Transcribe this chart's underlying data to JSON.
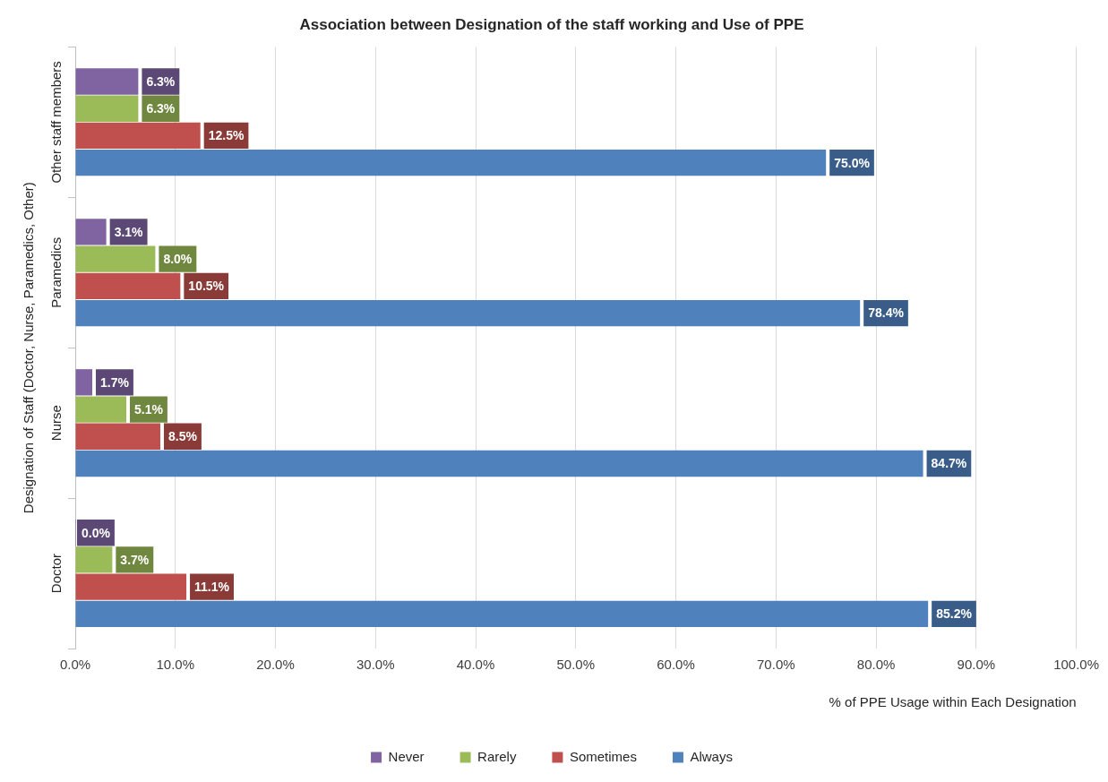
{
  "chart_data": {
    "type": "bar",
    "orientation": "horizontal",
    "title": "Association between Designation of the staff working and Use of PPE",
    "xlabel": "% of PPE Usage within Each Designation",
    "ylabel": "Designation of Staff (Doctor, Nurse, Paramedics, Other)",
    "categories": [
      "Other staff members",
      "Paramedics",
      "Nurse",
      "Doctor"
    ],
    "series": [
      {
        "name": "Never",
        "color": "#8064a2",
        "values": [
          6.3,
          3.1,
          1.7,
          0.0
        ],
        "value_labels": [
          "6.3%",
          "3.1%",
          "1.7%",
          "0.0%"
        ]
      },
      {
        "name": "Rarely",
        "color": "#9bbb59",
        "values": [
          6.3,
          8.0,
          5.1,
          3.7
        ],
        "value_labels": [
          "6.3%",
          "8.0%",
          "5.1%",
          "3.7%"
        ]
      },
      {
        "name": "Sometimes",
        "color": "#c0504d",
        "values": [
          12.5,
          10.5,
          8.5,
          11.1
        ],
        "value_labels": [
          "12.5%",
          "10.5%",
          "8.5%",
          "11.1%"
        ]
      },
      {
        "name": "Always",
        "color": "#4f81bd",
        "values": [
          75.0,
          78.4,
          84.7,
          85.2
        ],
        "value_labels": [
          "75.0%",
          "78.4%",
          "84.7%",
          "85.2%"
        ]
      }
    ],
    "xlim": [
      0,
      100
    ],
    "xticks": [
      {
        "value": 0,
        "label": "0.0%"
      },
      {
        "value": 10,
        "label": "10.0%"
      },
      {
        "value": 20,
        "label": "20.0%"
      },
      {
        "value": 30,
        "label": "30.0%"
      },
      {
        "value": 40,
        "label": "40.0%"
      },
      {
        "value": 50,
        "label": "50.0%"
      },
      {
        "value": 60,
        "label": "60.0%"
      },
      {
        "value": 70,
        "label": "70.0%"
      },
      {
        "value": 80,
        "label": "80.0%"
      },
      {
        "value": 90,
        "label": "90.0%"
      },
      {
        "value": 100,
        "label": "100.0%"
      }
    ],
    "grid": "x",
    "legend": "bottom"
  }
}
